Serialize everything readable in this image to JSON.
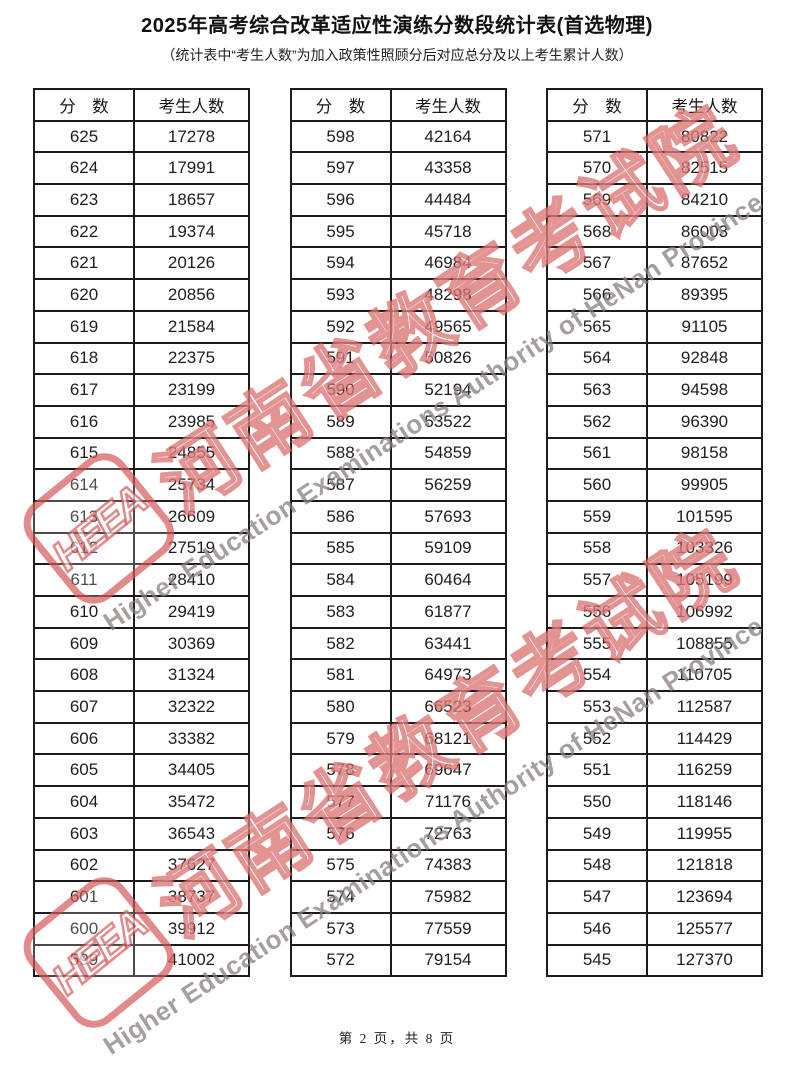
{
  "page": {
    "title": "2025年高考综合改革适应性演练分数段统计表(首选物理)",
    "subtitle": "（统计表中“考生人数”为加入政策性照顾分后对应总分及以上考生累计人数）",
    "footer": "第 2 页，共 8 页"
  },
  "watermark": {
    "logo_text": "HEEA",
    "cn_text": "河南省教育考试院",
    "en_text": "Higher Education Examinations Authority of HeNan Province",
    "color": "#d34f4f"
  },
  "tables": [
    {
      "headers": [
        "分　数",
        "考生人数"
      ],
      "rows": [
        [
          "625",
          "17278"
        ],
        [
          "624",
          "17991"
        ],
        [
          "623",
          "18657"
        ],
        [
          "622",
          "19374"
        ],
        [
          "621",
          "20126"
        ],
        [
          "620",
          "20856"
        ],
        [
          "619",
          "21584"
        ],
        [
          "618",
          "22375"
        ],
        [
          "617",
          "23199"
        ],
        [
          "616",
          "23985"
        ],
        [
          "615",
          "24855"
        ],
        [
          "614",
          "25734"
        ],
        [
          "613",
          "26609"
        ],
        [
          "612",
          "27519"
        ],
        [
          "611",
          "28410"
        ],
        [
          "610",
          "29419"
        ],
        [
          "609",
          "30369"
        ],
        [
          "608",
          "31324"
        ],
        [
          "607",
          "32322"
        ],
        [
          "606",
          "33382"
        ],
        [
          "605",
          "34405"
        ],
        [
          "604",
          "35472"
        ],
        [
          "603",
          "36543"
        ],
        [
          "602",
          "37627"
        ],
        [
          "601",
          "38737"
        ],
        [
          "600",
          "39912"
        ],
        [
          "599",
          "41002"
        ]
      ]
    },
    {
      "headers": [
        "分　数",
        "考生人数"
      ],
      "rows": [
        [
          "598",
          "42164"
        ],
        [
          "597",
          "43358"
        ],
        [
          "596",
          "44484"
        ],
        [
          "595",
          "45718"
        ],
        [
          "594",
          "46984"
        ],
        [
          "593",
          "48298"
        ],
        [
          "592",
          "49565"
        ],
        [
          "591",
          "50826"
        ],
        [
          "590",
          "52194"
        ],
        [
          "589",
          "53522"
        ],
        [
          "588",
          "54859"
        ],
        [
          "587",
          "56259"
        ],
        [
          "586",
          "57693"
        ],
        [
          "585",
          "59109"
        ],
        [
          "584",
          "60464"
        ],
        [
          "583",
          "61877"
        ],
        [
          "582",
          "63441"
        ],
        [
          "581",
          "64973"
        ],
        [
          "580",
          "66523"
        ],
        [
          "579",
          "68121"
        ],
        [
          "578",
          "69647"
        ],
        [
          "577",
          "71176"
        ],
        [
          "576",
          "72763"
        ],
        [
          "575",
          "74383"
        ],
        [
          "574",
          "75982"
        ],
        [
          "573",
          "77559"
        ],
        [
          "572",
          "79154"
        ]
      ]
    },
    {
      "headers": [
        "分　数",
        "考生人数"
      ],
      "rows": [
        [
          "571",
          "80822"
        ],
        [
          "570",
          "82515"
        ],
        [
          "569",
          "84210"
        ],
        [
          "568",
          "86003"
        ],
        [
          "567",
          "87652"
        ],
        [
          "566",
          "89395"
        ],
        [
          "565",
          "91105"
        ],
        [
          "564",
          "92848"
        ],
        [
          "563",
          "94598"
        ],
        [
          "562",
          "96390"
        ],
        [
          "561",
          "98158"
        ],
        [
          "560",
          "99905"
        ],
        [
          "559",
          "101595"
        ],
        [
          "558",
          "103326"
        ],
        [
          "557",
          "105199"
        ],
        [
          "556",
          "106992"
        ],
        [
          "555",
          "108855"
        ],
        [
          "554",
          "110705"
        ],
        [
          "553",
          "112587"
        ],
        [
          "552",
          "114429"
        ],
        [
          "551",
          "116259"
        ],
        [
          "550",
          "118146"
        ],
        [
          "549",
          "119955"
        ],
        [
          "548",
          "121818"
        ],
        [
          "547",
          "123694"
        ],
        [
          "546",
          "125577"
        ],
        [
          "545",
          "127370"
        ]
      ]
    }
  ]
}
